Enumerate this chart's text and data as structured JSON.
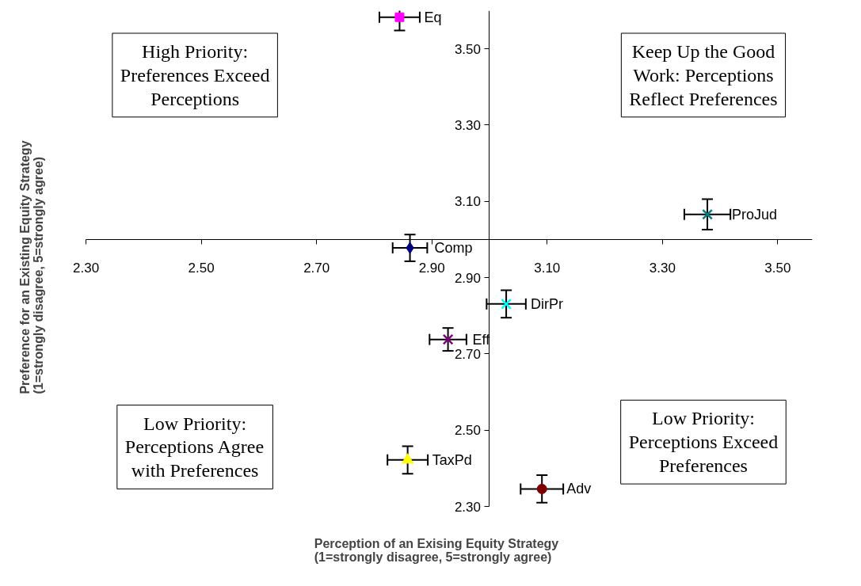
{
  "chart_data": {
    "type": "scatter",
    "xlabel": "Perception of an Exising Equity Strategy\n(1=strongly disagree, 5=strongly agree)",
    "ylabel": "Preference for an Existing Equity Strategy\n(1=strongly disagree, 5=strongly agree)",
    "xlim": [
      2.3,
      3.56
    ],
    "xticks": [
      {
        "value": 2.3,
        "label": "2.30"
      },
      {
        "value": 2.5,
        "label": "2.50"
      },
      {
        "value": 2.7,
        "label": "2.70"
      },
      {
        "value": 2.9,
        "label": "2.90"
      },
      {
        "value": 3.1,
        "label": "3.10"
      },
      {
        "value": 3.3,
        "label": "3.30"
      },
      {
        "value": 3.5,
        "label": "3.50"
      }
    ],
    "ylim": [
      2.3,
      3.6
    ],
    "yticks": [
      {
        "value": 2.3,
        "label": "2.30"
      },
      {
        "value": 2.5,
        "label": "2.50"
      },
      {
        "value": 2.7,
        "label": "2.70"
      },
      {
        "value": 2.9,
        "label": "2.90"
      },
      {
        "value": 3.1,
        "label": "3.10"
      },
      {
        "value": 3.3,
        "label": "3.30"
      },
      {
        "value": 3.5,
        "label": "3.50"
      }
    ],
    "grid": false,
    "annotations": [
      "High Priority:\nPreferences Exceed\nPerceptions",
      "Keep Up the Good\nWork: Perceptions\nReflect Preferences",
      "Low Priority:\nPerceptions Agree\nwith Preferences",
      "Low Priority:\nPerceptions Exceed\nPreferences"
    ],
    "series": [
      {
        "name": "Eq",
        "color": "#ff00ff",
        "marker": "square",
        "x": [
          2.844
        ],
        "values": [
          3.583
        ],
        "xerrors": [
          0.035
        ],
        "errors": [
          0.035
        ]
      },
      {
        "name": "Comp",
        "color": "#000080",
        "marker": "diamond",
        "x": [
          2.862
        ],
        "values": [
          2.978
        ],
        "xerrors": [
          0.03
        ],
        "errors": [
          0.035
        ]
      },
      {
        "name": "Eff",
        "color": "#800080",
        "marker": "cross",
        "x": [
          2.928
        ],
        "values": [
          2.738
        ],
        "xerrors": [
          0.032
        ],
        "errors": [
          0.03
        ]
      },
      {
        "name": "DirPr",
        "color": "#00ffff",
        "marker": "cross",
        "x": [
          3.029
        ],
        "values": [
          2.831
        ],
        "xerrors": [
          0.034
        ],
        "errors": [
          0.036
        ]
      },
      {
        "name": "TaxPd",
        "color": "#ffff00",
        "marker": "triangle",
        "x": [
          2.858
        ],
        "values": [
          2.422
        ],
        "xerrors": [
          0.035
        ],
        "errors": [
          0.036
        ]
      },
      {
        "name": "Adv",
        "color": "#800000",
        "marker": "circle",
        "x": [
          3.091
        ],
        "values": [
          2.346
        ],
        "xerrors": [
          0.037
        ],
        "errors": [
          0.036
        ]
      },
      {
        "name": "ProJud",
        "color": "#008080",
        "marker": "cross",
        "x": [
          3.378
        ],
        "values": [
          3.066
        ],
        "xerrors": [
          0.04
        ],
        "errors": [
          0.04
        ]
      }
    ]
  }
}
